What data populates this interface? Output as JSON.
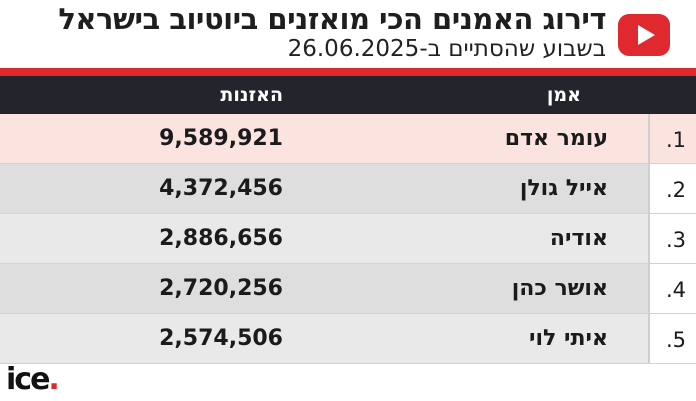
{
  "header": {
    "title": "דירוג האמנים הכי מואזנים ביוטיוב בישראל",
    "subtitle": "בשבוע שהסתיים ב-26.06.2025",
    "logo_icon": "youtube-play-icon",
    "accent_color": "#e0282f"
  },
  "table": {
    "columns": {
      "artist": "אמן",
      "listens": "האזנות"
    },
    "rows": [
      {
        "rank": "1.",
        "artist": "עומר אדם",
        "listens": "9,589,921"
      },
      {
        "rank": "2.",
        "artist": "אייל גולן",
        "listens": "4,372,456"
      },
      {
        "rank": "3.",
        "artist": "אודיה",
        "listens": "2,886,656"
      },
      {
        "rank": "4.",
        "artist": "אושר כהן",
        "listens": "2,720,256"
      },
      {
        "rank": "5.",
        "artist": "איתי לוי",
        "listens": "2,574,506"
      }
    ]
  },
  "footer": {
    "brand": "ice",
    "brand_dot": "."
  }
}
